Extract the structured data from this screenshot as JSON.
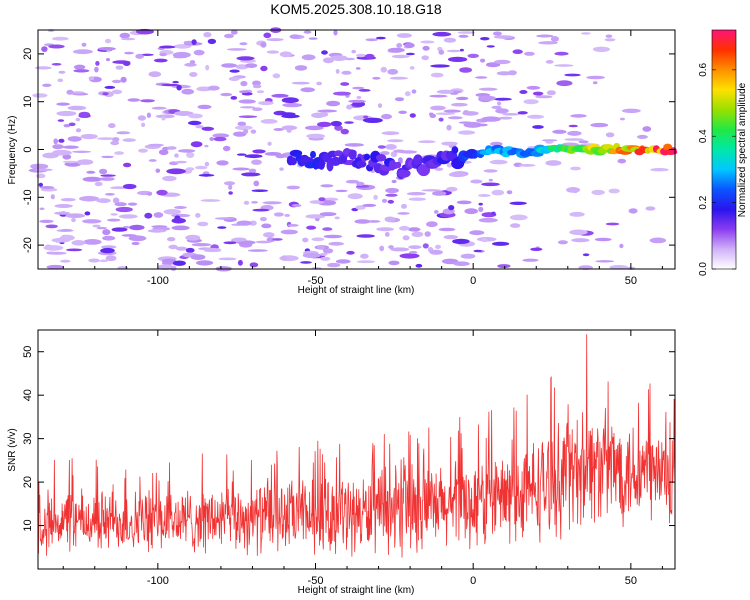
{
  "title": "KOM5.2025.308.10.18.G18",
  "chart_data": [
    {
      "type": "heatmap",
      "xlabel": "Height of straight line (km)",
      "ylabel": "Frequency (Hz)",
      "xlim": [
        -138,
        64
      ],
      "ylim": [
        -25,
        25
      ],
      "xticks": [
        -100,
        -50,
        0,
        50
      ],
      "yticks": [
        -20,
        -10,
        0,
        10,
        20
      ],
      "colorbar": {
        "label": "Normalized spectral amplitude",
        "range": [
          0.0,
          0.72
        ],
        "ticks": [
          0.0,
          0.2,
          0.4,
          0.6
        ],
        "colormap": [
          "#ffffff",
          "#d0b2f8",
          "#8a3cf0",
          "#2a14ee",
          "#0a55ff",
          "#00c8ff",
          "#00e8a8",
          "#22e844",
          "#9ae000",
          "#ffe000",
          "#ff9000",
          "#ff3000",
          "#ff1478"
        ]
      },
      "signal_trend": [
        {
          "x": -55,
          "freq": -2,
          "amp": 0.18
        },
        {
          "x": -40,
          "freq": -2,
          "amp": 0.16
        },
        {
          "x": -30,
          "freq": -3,
          "amp": 0.17
        },
        {
          "x": -20,
          "freq": -4,
          "amp": 0.15
        },
        {
          "x": -10,
          "freq": -2,
          "amp": 0.16
        },
        {
          "x": 0,
          "freq": -1,
          "amp": 0.22
        },
        {
          "x": 5,
          "freq": 0,
          "amp": 0.3
        },
        {
          "x": 15,
          "freq": -1,
          "amp": 0.25
        },
        {
          "x": 25,
          "freq": 0,
          "amp": 0.35
        },
        {
          "x": 35,
          "freq": 0,
          "amp": 0.45
        },
        {
          "x": 45,
          "freq": 0,
          "amp": 0.55
        },
        {
          "x": 55,
          "freq": 0,
          "amp": 0.62
        },
        {
          "x": 63,
          "freq": 0,
          "amp": 0.7
        }
      ],
      "noise_level": 0.08
    },
    {
      "type": "line",
      "xlabel": "Height of straight line (km)",
      "ylabel": "SNR (v/v)",
      "xlim": [
        -138,
        64
      ],
      "ylim": [
        0,
        55
      ],
      "xticks": [
        -100,
        -50,
        0,
        50
      ],
      "yticks": [
        10,
        20,
        30,
        40,
        50
      ],
      "color": "#f03232",
      "trend": [
        {
          "x": -138,
          "mean": 11,
          "spread": 7
        },
        {
          "x": -100,
          "mean": 11,
          "spread": 7
        },
        {
          "x": -60,
          "mean": 12,
          "spread": 8
        },
        {
          "x": -20,
          "mean": 13,
          "spread": 9
        },
        {
          "x": 0,
          "mean": 15,
          "spread": 10
        },
        {
          "x": 15,
          "mean": 17,
          "spread": 11
        },
        {
          "x": 25,
          "mean": 20,
          "spread": 12
        },
        {
          "x": 35,
          "mean": 24,
          "spread": 13
        },
        {
          "x": 50,
          "mean": 23,
          "spread": 12
        },
        {
          "x": 64,
          "mean": 21,
          "spread": 11
        }
      ],
      "peak": {
        "x": 36,
        "y": 54
      }
    }
  ]
}
